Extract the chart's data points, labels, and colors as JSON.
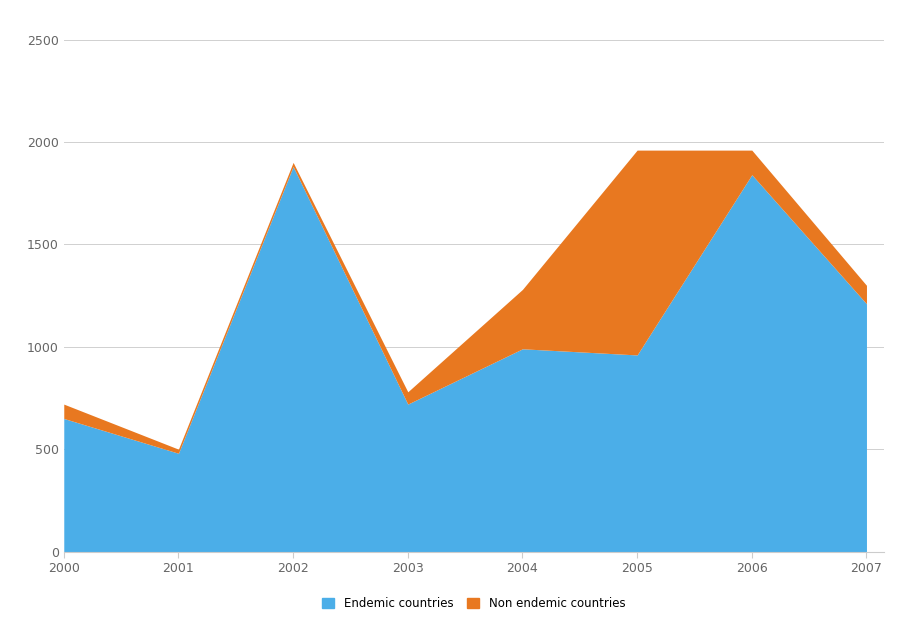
{
  "years": [
    2000,
    2001,
    2002,
    2003,
    2004,
    2005,
    2006,
    2007
  ],
  "endemic": [
    650,
    480,
    1880,
    720,
    990,
    960,
    1840,
    1210
  ],
  "non_endemic": [
    70,
    20,
    20,
    60,
    290,
    1000,
    120,
    90
  ],
  "endemic_color": "#4BAEE8",
  "non_endemic_color": "#E87820",
  "ylim": [
    0,
    2600
  ],
  "yticks": [
    0,
    500,
    1000,
    1500,
    2000,
    2500
  ],
  "legend_endemic": "Endemic countries",
  "legend_non_endemic": "Non endemic countries",
  "background_color": "#ffffff",
  "grid_color": "#d0d0d0",
  "axis_fontsize": 9,
  "legend_fontsize": 8.5
}
